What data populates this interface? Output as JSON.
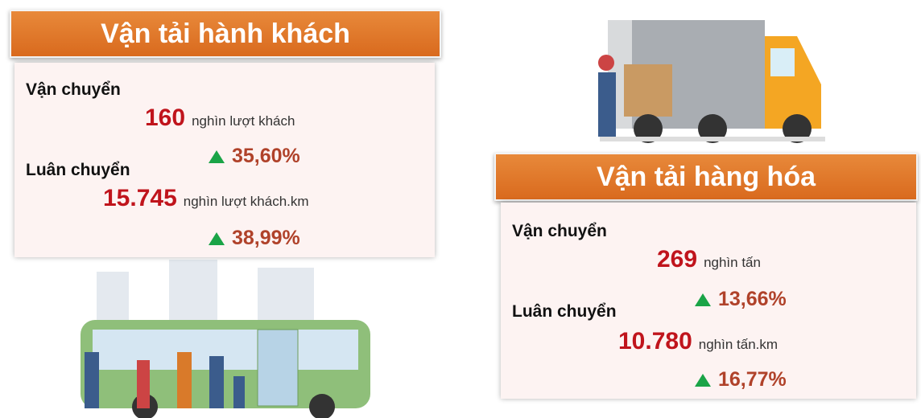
{
  "passenger": {
    "title": "Vận tải hành khách",
    "transport": {
      "label": "Vận chuyển",
      "value": "160",
      "unit": "nghìn lượt khách",
      "change": "35,60%"
    },
    "rotation": {
      "label": "Luân chuyển",
      "value": "15.745",
      "unit": "nghìn lượt khách.km",
      "change": "38,99%"
    }
  },
  "freight": {
    "title": "Vận tải hàng hóa",
    "transport": {
      "label": "Vận chuyển",
      "value": "269",
      "unit": "nghìn tấn",
      "change": "13,66%"
    },
    "rotation": {
      "label": "Luân chuyển",
      "value": "10.780",
      "unit": "nghìn tấn.km",
      "change": "16,77%"
    }
  }
}
